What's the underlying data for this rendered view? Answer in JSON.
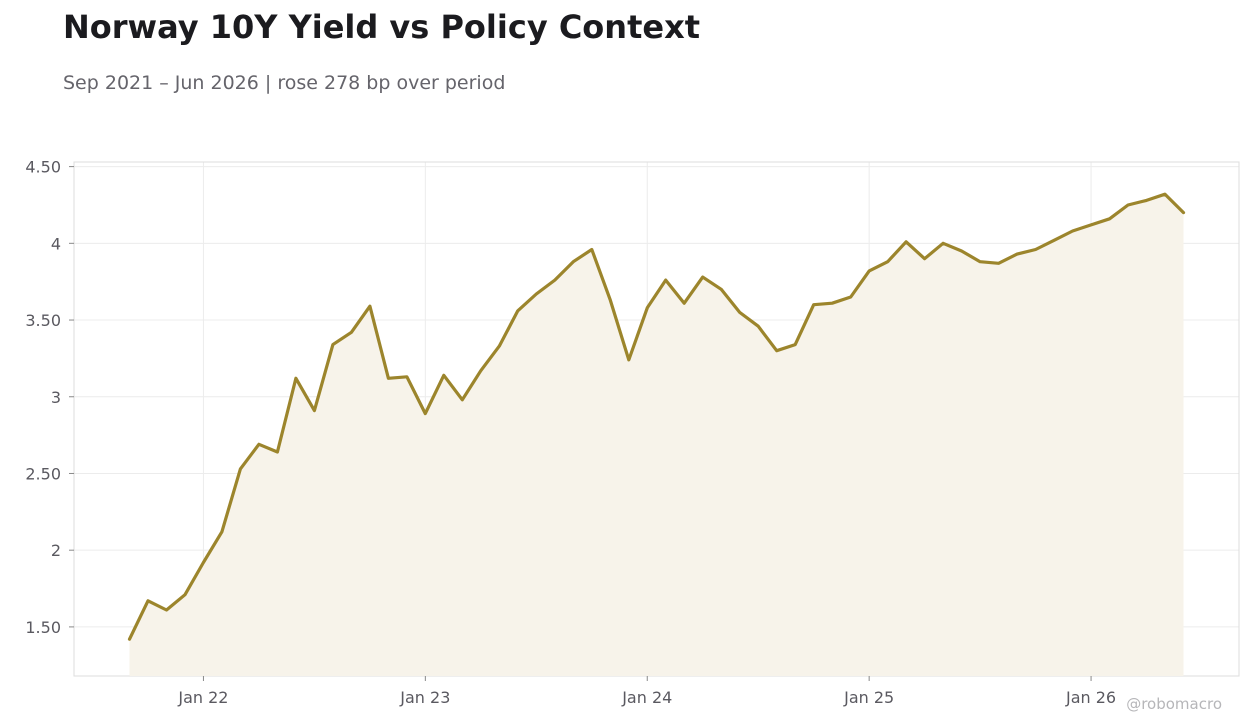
{
  "title": "Norway 10Y Yield vs Policy Context",
  "subtitle": "Sep 2021 – Jun 2026 | rose 278 bp over period",
  "watermark": "@robomacro",
  "colors": {
    "line": "#9c852c",
    "fill": "#f7f3ea",
    "grid": "#ececec",
    "frame": "#dddddd"
  },
  "chart_data": {
    "type": "area",
    "title": "Norway 10Y Yield vs Policy Context",
    "xlabel": "",
    "ylabel": "",
    "x": [
      "2021-09",
      "2021-10",
      "2021-11",
      "2021-12",
      "2022-01",
      "2022-02",
      "2022-03",
      "2022-04",
      "2022-05",
      "2022-06",
      "2022-07",
      "2022-08",
      "2022-09",
      "2022-10",
      "2022-11",
      "2022-12",
      "2023-01",
      "2023-02",
      "2023-03",
      "2023-04",
      "2023-05",
      "2023-06",
      "2023-07",
      "2023-08",
      "2023-09",
      "2023-10",
      "2023-11",
      "2023-12",
      "2024-01",
      "2024-02",
      "2024-03",
      "2024-04",
      "2024-05",
      "2024-06",
      "2024-07",
      "2024-08",
      "2024-09",
      "2024-10",
      "2024-11",
      "2024-12",
      "2025-01",
      "2025-02",
      "2025-03",
      "2025-04",
      "2025-05",
      "2025-06",
      "2025-07",
      "2025-08",
      "2025-09",
      "2025-10",
      "2025-11",
      "2025-12",
      "2026-01",
      "2026-02",
      "2026-03",
      "2026-04",
      "2026-05",
      "2026-06"
    ],
    "series": [
      {
        "values": [
          1.42,
          1.67,
          1.61,
          1.71,
          1.92,
          2.12,
          2.53,
          2.69,
          2.64,
          3.12,
          2.91,
          3.34,
          3.42,
          3.59,
          3.12,
          3.13,
          2.89,
          3.14,
          2.98,
          3.17,
          3.33,
          3.56,
          3.67,
          3.76,
          3.88,
          3.96,
          3.63,
          3.24,
          3.58,
          3.76,
          3.61,
          3.78,
          3.7,
          3.55,
          3.46,
          3.3,
          3.34,
          3.6,
          3.61,
          3.65,
          3.82,
          3.88,
          4.01,
          3.9,
          4.0,
          3.95,
          3.88,
          3.87,
          3.93,
          3.96,
          4.02,
          4.08,
          4.12,
          4.16,
          4.25,
          4.28,
          4.32,
          4.2
        ]
      }
    ],
    "y_ticks": [
      1.5,
      2,
      2.5,
      3,
      3.5,
      4,
      4.5
    ],
    "y_tick_labels": [
      "1.50",
      "2",
      "2.50",
      "3",
      "3.50",
      "4",
      "4.50"
    ],
    "x_ticks": [
      "2022-01",
      "2023-01",
      "2024-01",
      "2025-01",
      "2026-01"
    ],
    "x_tick_labels": [
      "Jan 22",
      "Jan 23",
      "Jan 24",
      "Jan 25",
      "Jan 26"
    ],
    "xlim": [
      "2021-06",
      "2026-09"
    ],
    "ylim": [
      1.18,
      4.53
    ],
    "grid": true,
    "legend": "none"
  }
}
